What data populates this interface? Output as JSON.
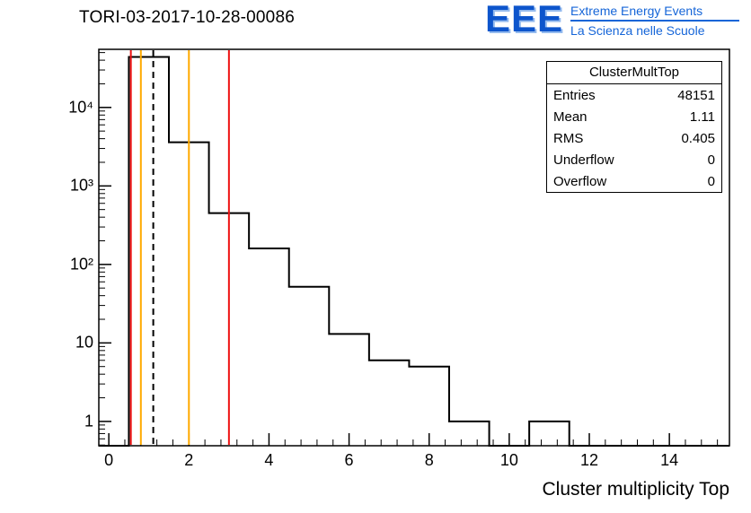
{
  "logo": {
    "text": "EEE",
    "line1": "Extreme Energy Events",
    "line2": "La Scienza nelle Scuole",
    "color": "#1565d8"
  },
  "stats": {
    "title": "ClusterMultTop",
    "rows": [
      {
        "label": "Entries",
        "value": "48151"
      },
      {
        "label": "Mean",
        "value": "1.11"
      },
      {
        "label": "RMS",
        "value": "0.405"
      },
      {
        "label": "Underflow",
        "value": "0"
      },
      {
        "label": "Overflow",
        "value": "0"
      }
    ]
  },
  "chart_data": {
    "type": "bar",
    "subtype": "step-histogram",
    "title": "TORI-03-2017-10-28-00086",
    "xlabel": "Cluster multiplicity Top",
    "ylabel": "",
    "y_scale": "log",
    "grid": false,
    "legend": "none",
    "x_range": [
      -0.25,
      15.5
    ],
    "y_range": [
      0.49,
      55000
    ],
    "bin_width": 1,
    "bin_start_edge": 0.5,
    "bin_centers": [
      1,
      2,
      3,
      4,
      5,
      6,
      7,
      8,
      9,
      10,
      11,
      12,
      13,
      14,
      15
    ],
    "values": [
      44000,
      3600,
      450,
      160,
      52,
      13,
      6,
      5,
      1,
      0,
      1,
      0,
      0,
      0,
      0
    ],
    "line_color": "#000000",
    "x_tick_major": [
      0,
      2,
      4,
      6,
      8,
      10,
      12,
      14
    ],
    "x_tick_minor_step": 0.4,
    "y_tick_labels": [
      {
        "text": "1",
        "value": 1
      },
      {
        "text": "10",
        "value": 10
      },
      {
        "text": "10²",
        "value": 100
      },
      {
        "text": "10³",
        "value": 1000
      },
      {
        "text": "10⁴",
        "value": 10000
      }
    ],
    "marker_lines": [
      {
        "x": 0.55,
        "color": "#ee1111",
        "style": "solid"
      },
      {
        "x": 0.8,
        "color": "#ffaa00",
        "style": "solid"
      },
      {
        "x": 1.11,
        "color": "#000000",
        "style": "dashed"
      },
      {
        "x": 2.0,
        "color": "#ffaa00",
        "style": "solid"
      },
      {
        "x": 3.0,
        "color": "#ee1111",
        "style": "solid"
      }
    ]
  }
}
